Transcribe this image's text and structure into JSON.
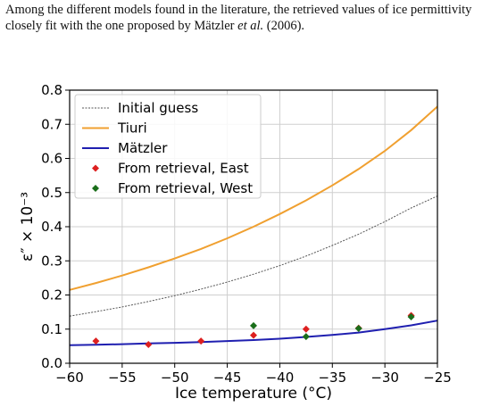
{
  "caption": {
    "part1": "Among the different models found in the literature, the retrieved values of ice permittivity closely fit with the one proposed by Mätzler ",
    "et_al": "et al.",
    "part2": " (2006)."
  },
  "chart_data": {
    "type": "line",
    "xlabel": "Ice temperature (°C)",
    "ylabel": "ε″ × 10⁻³",
    "xlim": [
      -60,
      -25
    ],
    "ylim": [
      0,
      0.8
    ],
    "xticks": [
      -60,
      -55,
      -50,
      -45,
      -40,
      -35,
      -30,
      -25
    ],
    "xtick_labels": [
      "−60",
      "−55",
      "−50",
      "−45",
      "−40",
      "−35",
      "−30",
      "−25"
    ],
    "yticks": [
      0.0,
      0.1,
      0.2,
      0.3,
      0.4,
      0.5,
      0.6,
      0.7,
      0.8
    ],
    "ytick_labels": [
      "0.0",
      "0.1",
      "0.2",
      "0.3",
      "0.4",
      "0.5",
      "0.6",
      "0.7",
      "0.8"
    ],
    "grid": true,
    "legend_position": "top-left",
    "series": [
      {
        "name": "Initial guess",
        "kind": "line",
        "style": "dotted",
        "color": "#555555",
        "x": [
          -60,
          -57.5,
          -55,
          -52.5,
          -50,
          -47.5,
          -45,
          -42.5,
          -40,
          -37.5,
          -35,
          -32.5,
          -30,
          -27.5,
          -25
        ],
        "y": [
          0.138,
          0.151,
          0.165,
          0.181,
          0.198,
          0.217,
          0.238,
          0.261,
          0.286,
          0.314,
          0.345,
          0.378,
          0.415,
          0.455,
          0.49
        ]
      },
      {
        "name": "Tiuri",
        "kind": "line",
        "style": "solid",
        "color": "#f0a030",
        "x": [
          -60,
          -57.5,
          -55,
          -52.5,
          -50,
          -47.5,
          -45,
          -42.5,
          -40,
          -37.5,
          -35,
          -32.5,
          -30,
          -27.5,
          -25
        ],
        "y": [
          0.215,
          0.235,
          0.257,
          0.281,
          0.307,
          0.335,
          0.366,
          0.4,
          0.437,
          0.477,
          0.521,
          0.569,
          0.622,
          0.683,
          0.752
        ]
      },
      {
        "name": "Mätzler",
        "kind": "line",
        "style": "solid",
        "color": "#1f1fb0",
        "x": [
          -60,
          -57.5,
          -55,
          -52.5,
          -50,
          -47.5,
          -45,
          -42.5,
          -40,
          -37.5,
          -35,
          -32.5,
          -30,
          -27.5,
          -25
        ],
        "y": [
          0.053,
          0.054,
          0.056,
          0.058,
          0.06,
          0.062,
          0.065,
          0.068,
          0.072,
          0.077,
          0.083,
          0.09,
          0.1,
          0.111,
          0.125
        ]
      },
      {
        "name": "From retrieval, East",
        "kind": "scatter",
        "marker": "diamond",
        "color": "#dd2020",
        "x": [
          -57.5,
          -52.5,
          -47.5,
          -42.5,
          -37.5,
          -32.5,
          -27.5
        ],
        "y": [
          0.065,
          0.055,
          0.065,
          0.082,
          0.1,
          0.103,
          0.14
        ]
      },
      {
        "name": "From retrieval, West",
        "kind": "scatter",
        "marker": "diamond",
        "color": "#1a6e1a",
        "x": [
          -42.5,
          -37.5,
          -32.5,
          -27.5
        ],
        "y": [
          0.11,
          0.078,
          0.102,
          0.136
        ]
      }
    ]
  }
}
